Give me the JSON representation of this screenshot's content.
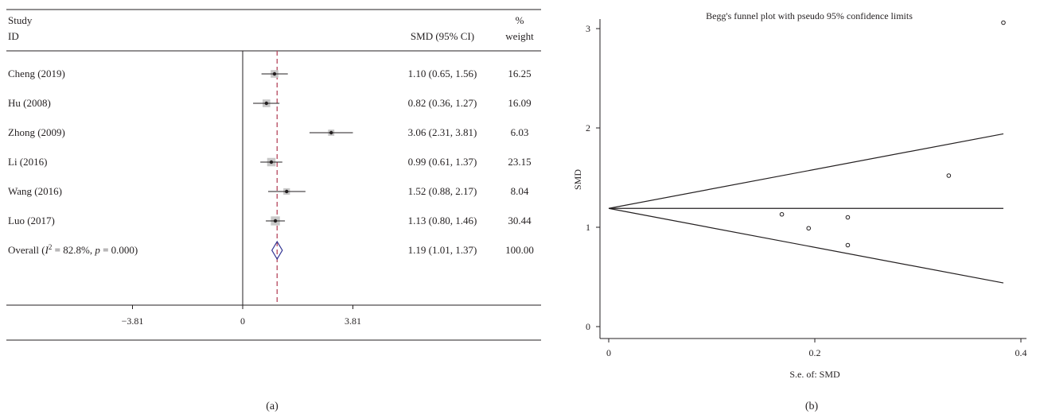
{
  "panel_a": {
    "caption": "(a)",
    "header_study": "Study",
    "header_id": "ID",
    "header_smd": "SMD (95% CI)",
    "header_pct": "%",
    "header_weight": "weight",
    "overall_label": {
      "prefix": "Overall (",
      "i_symbol": "I",
      "i_sup": "2",
      "i_value": " = 82.8%, ",
      "p_symbol": "p",
      "p_value": " = 0.000)"
    }
  },
  "panel_b": {
    "caption": "(b)"
  },
  "colors": {
    "ink": "#231f20",
    "ref_line": "#b5485d",
    "diamond": "#2e3192",
    "weight_box": "#c8c8c8"
  },
  "chart_data": [
    {
      "type": "forest",
      "x_ticks": [
        -3.81,
        0,
        3.81
      ],
      "x_tick_labels": [
        "−3.81",
        "0",
        "3.81"
      ],
      "xlim": [
        -3.81,
        3.81
      ],
      "null_line": 0,
      "reference_line": 1.19,
      "studies": [
        {
          "name": "Cheng (2019)",
          "smd": 1.1,
          "lo": 0.65,
          "hi": 1.56,
          "ci_text": "1.10 (0.65, 1.56)",
          "weight": 16.25,
          "weight_text": "16.25"
        },
        {
          "name": "Hu (2008)",
          "smd": 0.82,
          "lo": 0.36,
          "hi": 1.27,
          "ci_text": "0.82 (0.36, 1.27)",
          "weight": 16.09,
          "weight_text": "16.09"
        },
        {
          "name": "Zhong (2009)",
          "smd": 3.06,
          "lo": 2.31,
          "hi": 3.81,
          "ci_text": "3.06 (2.31, 3.81)",
          "weight": 6.03,
          "weight_text": "6.03"
        },
        {
          "name": "Li (2016)",
          "smd": 0.99,
          "lo": 0.61,
          "hi": 1.37,
          "ci_text": "0.99 (0.61, 1.37)",
          "weight": 23.15,
          "weight_text": "23.15"
        },
        {
          "name": "Wang (2016)",
          "smd": 1.52,
          "lo": 0.88,
          "hi": 2.17,
          "ci_text": "1.52 (0.88, 2.17)",
          "weight": 8.04,
          "weight_text": "8.04"
        },
        {
          "name": "Luo (2017)",
          "smd": 1.13,
          "lo": 0.8,
          "hi": 1.46,
          "ci_text": "1.13 (0.80, 1.46)",
          "weight": 30.44,
          "weight_text": "30.44"
        }
      ],
      "overall": {
        "smd": 1.19,
        "lo": 1.01,
        "hi": 1.37,
        "ci_text": "1.19 (1.01, 1.37)",
        "weight_text": "100.00"
      }
    },
    {
      "type": "scatter",
      "title": "Begg's funnel plot with pseudo 95% confidence limits",
      "xlabel": "S.e. of: SMD",
      "ylabel": "SMD",
      "xlim": [
        0,
        0.4
      ],
      "ylim": [
        0,
        3
      ],
      "x_ticks": [
        0,
        0.2,
        0.4
      ],
      "x_tick_labels": [
        "0",
        "0.2",
        "0.4"
      ],
      "y_ticks": [
        0,
        1,
        2,
        3
      ],
      "y_tick_labels": [
        "0",
        "1",
        "2",
        "3"
      ],
      "pooled_estimate": 1.19,
      "funnel_max_se": 0.383,
      "points": [
        {
          "se": 0.232,
          "smd": 1.1
        },
        {
          "se": 0.232,
          "smd": 0.82
        },
        {
          "se": 0.383,
          "smd": 3.06
        },
        {
          "se": 0.194,
          "smd": 0.99
        },
        {
          "se": 0.33,
          "smd": 1.52
        },
        {
          "se": 0.168,
          "smd": 1.13
        }
      ]
    }
  ]
}
